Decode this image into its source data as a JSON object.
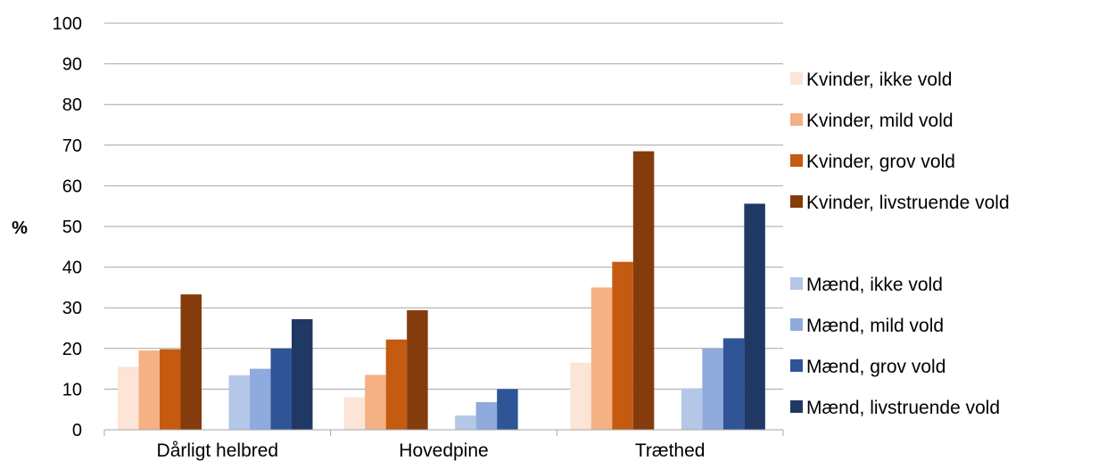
{
  "chart_data": {
    "type": "bar",
    "title": "",
    "xlabel": "",
    "ylabel": "%",
    "ylim": [
      0,
      100
    ],
    "yticks": [
      0,
      10,
      20,
      30,
      40,
      50,
      60,
      70,
      80,
      90,
      100
    ],
    "grid": true,
    "legend_position": "right",
    "categories": [
      "Dårligt helbred",
      "Hovedpine",
      "Træthed"
    ],
    "series": [
      {
        "name": "Kvinder, ikke vold",
        "color": "#FCE4D6",
        "values": [
          15.5,
          8,
          16.5
        ]
      },
      {
        "name": "Kvinder, mild vold",
        "color": "#F4B183",
        "values": [
          19.5,
          13.5,
          35
        ]
      },
      {
        "name": "Kvinder, grov vold",
        "color": "#C55A11",
        "values": [
          19.8,
          22.2,
          41.3
        ]
      },
      {
        "name": "Kvinder, livstruende vold",
        "color": "#843C0C",
        "values": [
          33.3,
          29.4,
          68.5
        ]
      },
      {
        "name": "Mænd, ikke vold",
        "color": "#B4C7E7",
        "values": [
          13.4,
          3.5,
          10.2
        ]
      },
      {
        "name": "Mænd, mild vold",
        "color": "#8FAADC",
        "values": [
          15,
          6.8,
          20
        ]
      },
      {
        "name": "Mænd, grov vold",
        "color": "#2F5597",
        "values": [
          20,
          10,
          22.5
        ]
      },
      {
        "name": "Mænd, livstruende vold",
        "color": "#203864",
        "values": [
          27.2,
          null,
          55.6
        ]
      }
    ]
  }
}
